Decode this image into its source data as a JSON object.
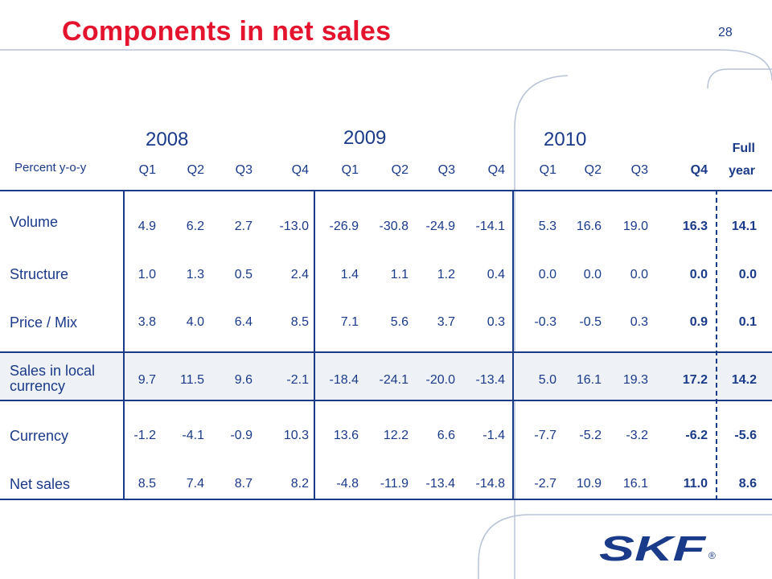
{
  "slide": {
    "title": "Components in net sales",
    "page_number": "28"
  },
  "table": {
    "unit_label": "Percent y-o-y",
    "years": [
      "2008",
      "2009",
      "2010"
    ],
    "quarters": [
      "Q1",
      "Q2",
      "Q3",
      "Q4",
      "Q1",
      "Q2",
      "Q3",
      "Q4",
      "Q1",
      "Q2",
      "Q3",
      "Q4"
    ],
    "full_year_label": [
      "Full",
      "year"
    ],
    "rows": [
      {
        "label": "Volume",
        "values": [
          "4.9",
          "6.2",
          "2.7",
          "-13.0",
          "-26.9",
          "-30.8",
          "-24.9",
          "-14.1",
          "5.3",
          "16.6",
          "19.0",
          "16.3"
        ],
        "full_year": "14.1"
      },
      {
        "label": "Structure",
        "values": [
          "1.0",
          "1.3",
          "0.5",
          "2.4",
          "1.4",
          "1.1",
          "1.2",
          "0.4",
          "0.0",
          "0.0",
          "0.0",
          "0.0"
        ],
        "full_year": "0.0"
      },
      {
        "label": "Price / Mix",
        "values": [
          "3.8",
          "4.0",
          "6.4",
          "8.5",
          "7.1",
          "5.6",
          "3.7",
          "0.3",
          "-0.3",
          "-0.5",
          "0.3",
          "0.9"
        ],
        "full_year": "0.1"
      },
      {
        "label": "Sales in local currency",
        "values": [
          "9.7",
          "11.5",
          "9.6",
          "-2.1",
          "-18.4",
          "-24.1",
          "-20.0",
          "-13.4",
          "5.0",
          "16.1",
          "19.3",
          "17.2"
        ],
        "full_year": "14.2"
      },
      {
        "label": "Currency",
        "values": [
          "-1.2",
          "-4.1",
          "-0.9",
          "10.3",
          "13.6",
          "12.2",
          "6.6",
          "-1.4",
          "-7.7",
          "-5.2",
          "-3.2",
          "-6.2"
        ],
        "full_year": "-5.6"
      },
      {
        "label": "Net sales",
        "values": [
          "8.5",
          "7.4",
          "8.7",
          "8.2",
          "-4.8",
          "-11.9",
          "-13.4",
          "-14.8",
          "-2.7",
          "10.9",
          "16.1",
          "11.0"
        ],
        "full_year": "8.6"
      }
    ]
  },
  "logo": {
    "text": "SKF",
    "registered": "®",
    "color": "#1a3a8a"
  },
  "colors": {
    "title": "#e5142e",
    "text": "#1a3a8a",
    "highlight": "#eef1f6"
  }
}
